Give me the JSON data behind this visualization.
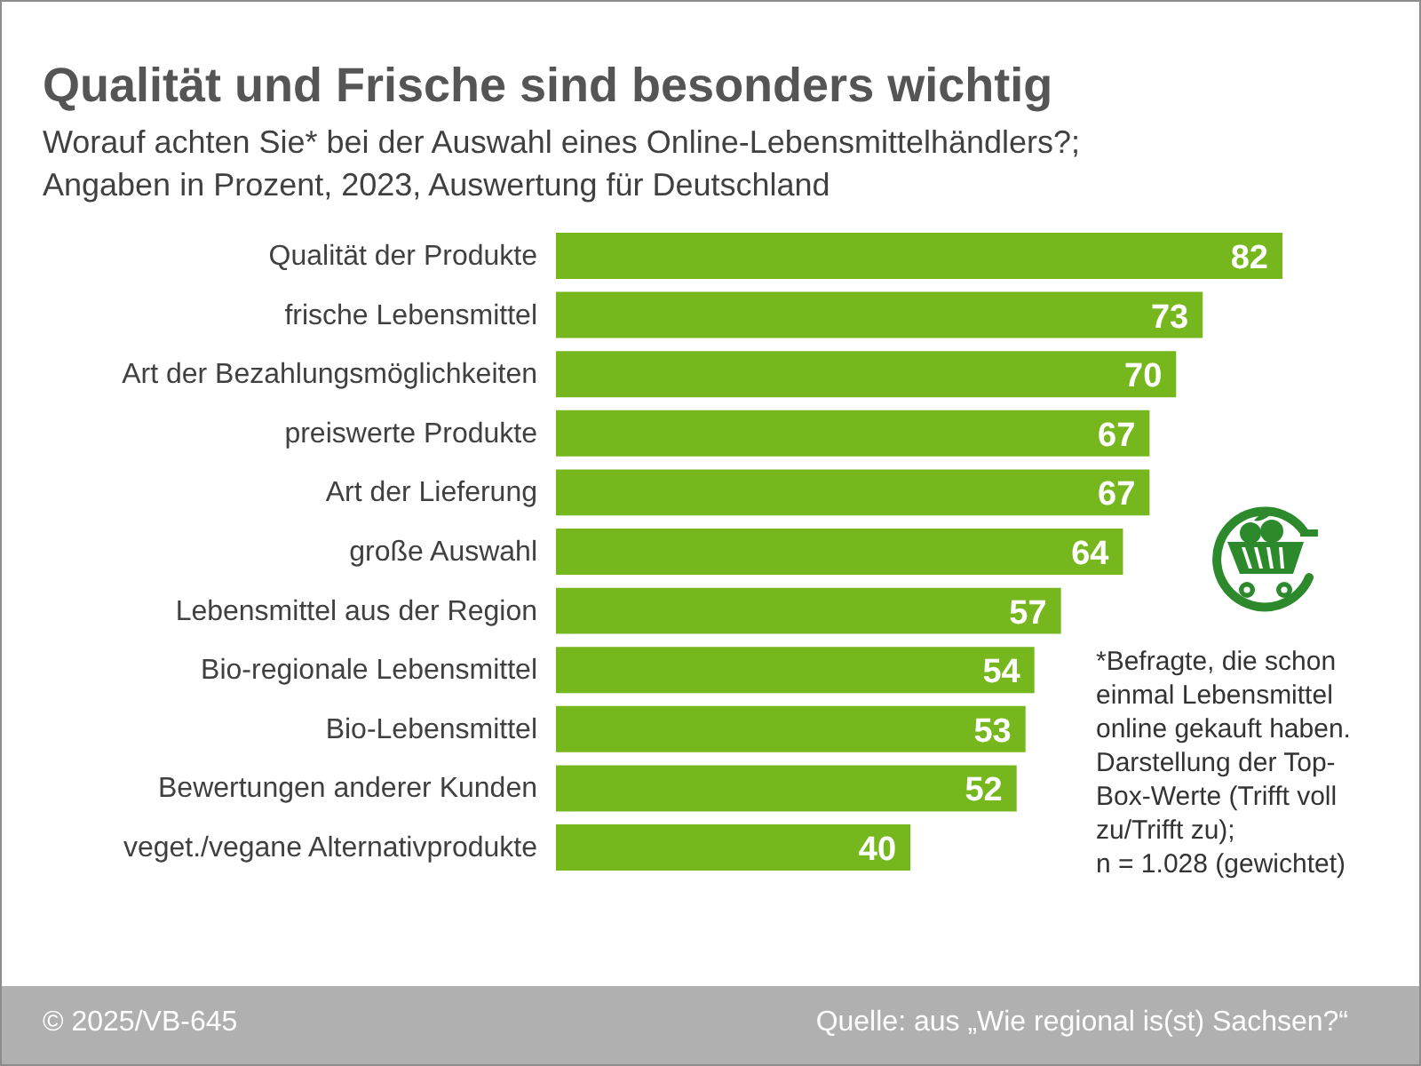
{
  "chart_data": {
    "type": "bar",
    "orientation": "horizontal",
    "title": "Qualität und Frische sind besonders wichtig",
    "subtitle": "Worauf achten Sie* bei der Auswahl eines Online-Lebensmittelhändlers?;\nAngaben in Prozent, 2023, Auswertung für Deutschland",
    "categories": [
      "Qualität der Produkte",
      "frische Lebensmittel",
      "Art der Bezahlungsmöglichkeiten",
      "preiswerte Produkte",
      "Art der Lieferung",
      "große Auswahl",
      "Lebensmittel aus der Region",
      "Bio-regionale Lebensmittel",
      "Bio-Lebensmittel",
      "Bewertungen anderer Kunden",
      "veget./vegane Alternativprodukte"
    ],
    "values": [
      82,
      73,
      70,
      67,
      67,
      64,
      57,
      54,
      53,
      52,
      40
    ],
    "color": "#76b71d",
    "data_labels": true,
    "annotations": [
      "*Befragte, die schon einmal Lebensmittel online gekauft haben. Darstellung der Top-Box-Werte (Trifft voll zu/Trifft zu);\nn = 1.028 (gewichtet)",
      "© 2025/VB-645",
      "Quelle: aus „Wie regional is(st) Sachsen?“"
    ]
  }
}
